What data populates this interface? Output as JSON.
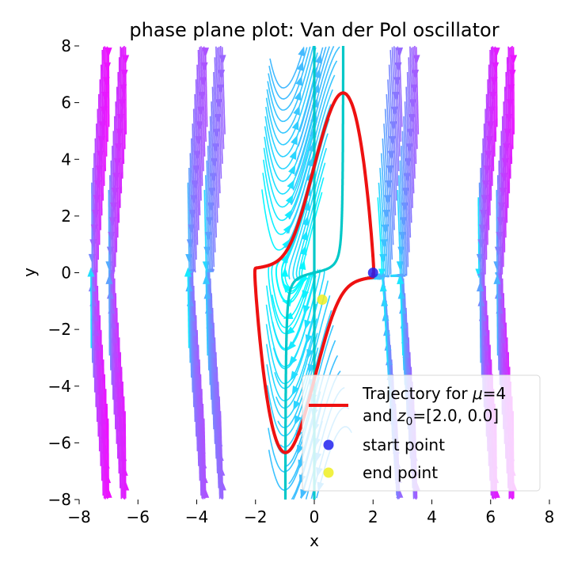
{
  "chart_data": {
    "type": "streamplot",
    "title": "phase plane plot: Van der Pol oscillator",
    "xlabel": "x",
    "ylabel": "y",
    "xlim": [
      -8,
      8
    ],
    "ylim": [
      -8,
      8
    ],
    "xticks": [
      -8,
      -6,
      -4,
      -2,
      0,
      2,
      4,
      6,
      8
    ],
    "yticks": [
      -8,
      -6,
      -4,
      -2,
      0,
      2,
      4,
      6,
      8
    ],
    "grid": false,
    "mu": 4,
    "z0": [
      2.0,
      0.0
    ],
    "colormap": "cool",
    "series": [
      {
        "name": "Trajectory for μ=4 and z0=[2.0, 0.0]",
        "kind": "line",
        "color": "#ee1111"
      },
      {
        "name": "start point",
        "kind": "point",
        "x": 2.0,
        "y": 0.0,
        "color": "#2222ee"
      },
      {
        "name": "end point",
        "kind": "point",
        "x": 0.27,
        "y": -0.95,
        "color": "#eeee22"
      }
    ],
    "nullclines": {
      "color": "#00c8c8",
      "x_nullcline": "x = 0",
      "y_nullcline": "x = mu*(1 - x^2)*y"
    },
    "legend": {
      "position": "lower right",
      "entries": [
        {
          "line1_prefix": "Trajectory for ",
          "mu_symbol": "μ",
          "line1_suffix": "=4",
          "line2_prefix": "and ",
          "z_symbol": "z",
          "z_sub": "0",
          "line2_suffix": "=[2.0, 0.0]"
        },
        {
          "label": "start point"
        },
        {
          "label": "end point"
        }
      ]
    }
  }
}
